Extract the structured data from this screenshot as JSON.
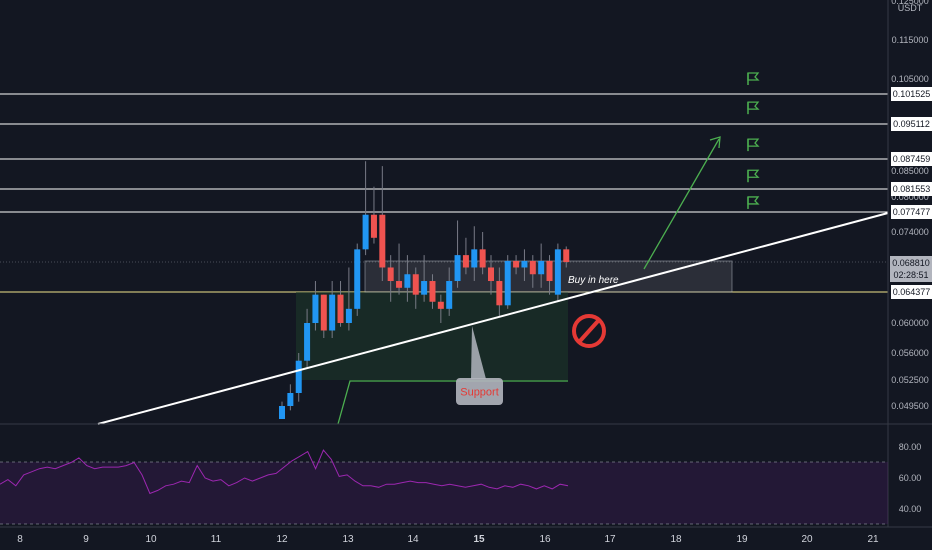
{
  "chart_data": {
    "type": "candlestick",
    "currency": "USDT",
    "y_ticks": [
      "0.115000",
      "0.105000",
      "0.085000",
      "0.080000",
      "0.074000",
      "0.060000",
      "0.056000",
      "0.052500",
      "0.049500"
    ],
    "x_ticks": [
      "8",
      "9",
      "10",
      "11",
      "12",
      "13",
      "14",
      "15",
      "16",
      "17",
      "18",
      "19",
      "20",
      "21"
    ],
    "price_lines": [
      {
        "label": "0.101525",
        "color": "#ffffff"
      },
      {
        "label": "0.095112",
        "color": "#ffffff"
      },
      {
        "label": "0.087459",
        "color": "#ffffff"
      },
      {
        "label": "0.081553",
        "color": "#ffffff"
      },
      {
        "label": "0.077477",
        "color": "#ffffff"
      },
      {
        "label": "0.064377",
        "color": "#f0e68c"
      }
    ],
    "current_price": "0.068810",
    "countdown": "02:28:51",
    "candles": [
      {
        "o": 0.048,
        "h": 0.05,
        "l": 0.048,
        "c": 0.0495
      },
      {
        "o": 0.0495,
        "h": 0.052,
        "l": 0.049,
        "c": 0.051
      },
      {
        "o": 0.051,
        "h": 0.056,
        "l": 0.05,
        "c": 0.055
      },
      {
        "o": 0.055,
        "h": 0.062,
        "l": 0.054,
        "c": 0.06
      },
      {
        "o": 0.06,
        "h": 0.066,
        "l": 0.059,
        "c": 0.064
      },
      {
        "o": 0.064,
        "h": 0.064,
        "l": 0.058,
        "c": 0.059
      },
      {
        "o": 0.059,
        "h": 0.066,
        "l": 0.058,
        "c": 0.064
      },
      {
        "o": 0.064,
        "h": 0.066,
        "l": 0.0595,
        "c": 0.06
      },
      {
        "o": 0.06,
        "h": 0.068,
        "l": 0.059,
        "c": 0.062
      },
      {
        "o": 0.062,
        "h": 0.072,
        "l": 0.061,
        "c": 0.071
      },
      {
        "o": 0.071,
        "h": 0.087,
        "l": 0.07,
        "c": 0.077
      },
      {
        "o": 0.077,
        "h": 0.082,
        "l": 0.072,
        "c": 0.073
      },
      {
        "o": 0.077,
        "h": 0.086,
        "l": 0.066,
        "c": 0.068
      },
      {
        "o": 0.068,
        "h": 0.07,
        "l": 0.063,
        "c": 0.066
      },
      {
        "o": 0.066,
        "h": 0.072,
        "l": 0.064,
        "c": 0.065
      },
      {
        "o": 0.065,
        "h": 0.07,
        "l": 0.063,
        "c": 0.067
      },
      {
        "o": 0.067,
        "h": 0.068,
        "l": 0.062,
        "c": 0.064
      },
      {
        "o": 0.064,
        "h": 0.07,
        "l": 0.063,
        "c": 0.066
      },
      {
        "o": 0.066,
        "h": 0.067,
        "l": 0.062,
        "c": 0.063
      },
      {
        "o": 0.063,
        "h": 0.064,
        "l": 0.06,
        "c": 0.062
      },
      {
        "o": 0.062,
        "h": 0.068,
        "l": 0.061,
        "c": 0.066
      },
      {
        "o": 0.066,
        "h": 0.076,
        "l": 0.065,
        "c": 0.07
      },
      {
        "o": 0.07,
        "h": 0.073,
        "l": 0.067,
        "c": 0.068
      },
      {
        "o": 0.068,
        "h": 0.075,
        "l": 0.066,
        "c": 0.071
      },
      {
        "o": 0.071,
        "h": 0.074,
        "l": 0.067,
        "c": 0.068
      },
      {
        "o": 0.068,
        "h": 0.07,
        "l": 0.064,
        "c": 0.066
      },
      {
        "o": 0.066,
        "h": 0.068,
        "l": 0.061,
        "c": 0.0625
      },
      {
        "o": 0.0625,
        "h": 0.07,
        "l": 0.062,
        "c": 0.069
      },
      {
        "o": 0.069,
        "h": 0.07,
        "l": 0.067,
        "c": 0.068
      },
      {
        "o": 0.068,
        "h": 0.071,
        "l": 0.066,
        "c": 0.069
      },
      {
        "o": 0.069,
        "h": 0.07,
        "l": 0.065,
        "c": 0.067
      },
      {
        "o": 0.067,
        "h": 0.072,
        "l": 0.065,
        "c": 0.069
      },
      {
        "o": 0.069,
        "h": 0.07,
        "l": 0.064,
        "c": 0.066
      },
      {
        "o": 0.064,
        "h": 0.072,
        "l": 0.063,
        "c": 0.071
      },
      {
        "o": 0.071,
        "h": 0.0715,
        "l": 0.068,
        "c": 0.0688
      }
    ],
    "annotations": {
      "buy_zone": "Buy in here",
      "support": "Support"
    },
    "rsi": {
      "ticks": [
        "80.00",
        "60.00",
        "40.00"
      ],
      "values": [
        56,
        59,
        55,
        62,
        64,
        66,
        67,
        66,
        68,
        70,
        73,
        68,
        66,
        67,
        67,
        67,
        68,
        70,
        62,
        50,
        52,
        55,
        56,
        58,
        57,
        68,
        60,
        58,
        59,
        55,
        57,
        60,
        58,
        60,
        62,
        63,
        67,
        71,
        74,
        77,
        66,
        78,
        72,
        61,
        62,
        58,
        55,
        55,
        54,
        56,
        56,
        57,
        58,
        57,
        57,
        56,
        55,
        56,
        55,
        54,
        55,
        56,
        54,
        53,
        55,
        54,
        56,
        55,
        53,
        55,
        53,
        56,
        55
      ]
    }
  },
  "colors": {
    "background": "#131722",
    "up": "#2196f3",
    "down": "#ef5350",
    "trendline": "#ffffff",
    "target_arrow": "#4caf50",
    "flag": "#4caf50",
    "rsi_line": "#9c27b0",
    "rsi_band": "#2a1a3e"
  }
}
